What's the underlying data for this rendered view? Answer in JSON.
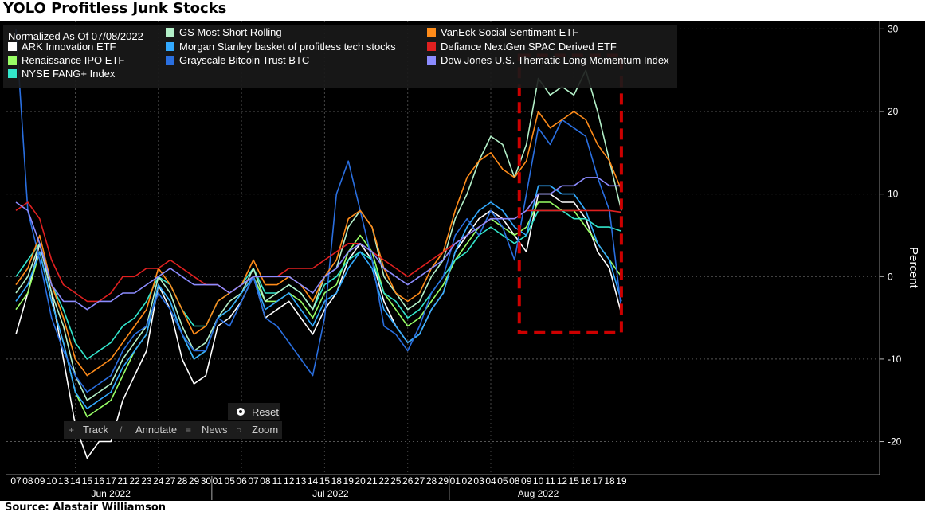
{
  "title": "YOLO Profitless Junk Stocks",
  "source": "Source: Alastair Williamson",
  "toolbar": {
    "reset": "Reset",
    "track": "Track",
    "annotate": "Annotate",
    "news": "News",
    "zoom": "Zoom"
  },
  "chart_data": {
    "type": "line",
    "title": "YOLO Profitless Junk Stocks",
    "normalized_note": "Normalized As Of 07/08/2022",
    "ylabel": "Percent",
    "ylim": [
      -24,
      31
    ],
    "yticks": [
      -20,
      -10,
      0,
      10,
      20,
      30
    ],
    "grid": true,
    "legend_position": "top-left",
    "x_tick_labels": [
      "07",
      "08",
      "09",
      "10",
      "13",
      "14",
      "15",
      "16",
      "17",
      "21",
      "22",
      "23",
      "24",
      "27",
      "28",
      "29",
      "30",
      "01",
      "05",
      "06",
      "07",
      "08",
      "11",
      "12",
      "13",
      "14",
      "15",
      "18",
      "19",
      "20",
      "21",
      "22",
      "25",
      "26",
      "27",
      "28",
      "29",
      "01",
      "02",
      "03",
      "04",
      "05",
      "08",
      "09",
      "10",
      "11",
      "12",
      "15",
      "16",
      "17",
      "18",
      "19"
    ],
    "month_labels": [
      {
        "label": "Jun 2022",
        "start": 0,
        "end": 17
      },
      {
        "label": "Jul 2022",
        "start": 17,
        "end": 37
      },
      {
        "label": "Aug 2022",
        "start": 37,
        "end": 52
      }
    ],
    "highlight_box": {
      "x_start": 42.4,
      "x_end": 51.0,
      "y_min": -6.8,
      "y_max": 26.8,
      "color": "#cc0000"
    },
    "series": [
      {
        "name": "ARK Innovation ETF",
        "color": "#ffffff",
        "values": [
          -7,
          -2,
          4,
          -2,
          -10,
          -18,
          -22,
          -20,
          -20,
          -15,
          -12,
          -9,
          -1,
          -4,
          -10,
          -13,
          -12,
          -6,
          -5,
          -3,
          0,
          -5,
          -4,
          -3,
          -5,
          -7,
          -4,
          -2,
          2,
          4,
          2,
          -3,
          -6,
          -8,
          -7,
          -4,
          -2,
          3,
          5,
          7,
          8,
          7,
          5,
          3,
          10,
          10,
          9,
          9,
          7,
          3,
          1,
          -4.5
        ]
      },
      {
        "name": "Renaissance IPO ETF",
        "color": "#99ff66",
        "values": [
          -4,
          -2,
          3,
          -3,
          -8,
          -14,
          -17,
          -16,
          -15,
          -12,
          -9,
          -7,
          -1,
          -3,
          -7,
          -10,
          -9,
          -5,
          -4,
          -2,
          0,
          -3,
          -3,
          -2,
          -3,
          -5,
          -2,
          -1,
          3,
          5,
          3,
          -2,
          -4,
          -6,
          -5,
          -3,
          -1,
          2,
          4,
          6,
          7,
          6,
          5,
          6,
          9,
          9,
          8,
          8,
          6,
          4,
          2,
          0
        ]
      },
      {
        "name": "NYSE FANG+ Index",
        "color": "#33e6cc",
        "values": [
          0,
          2,
          4,
          -1,
          -4,
          -8,
          -10,
          -9,
          -8,
          -6,
          -5,
          -3,
          0,
          -1,
          -4,
          -6,
          -6,
          -3,
          -2,
          -1,
          1,
          -2,
          -2,
          -1,
          -2,
          -4,
          -1,
          0,
          2,
          3,
          2,
          -2,
          -3,
          -5,
          -4,
          -2,
          0,
          2,
          3,
          5,
          6,
          5,
          4,
          5,
          8,
          8,
          8,
          7,
          7,
          6,
          6,
          5.5
        ]
      },
      {
        "name": "GS Most Short Rolling",
        "color": "#b3f0c8",
        "values": [
          -2,
          0,
          4,
          -2,
          -6,
          -12,
          -15,
          -14,
          -13,
          -10,
          -8,
          -6,
          0,
          -2,
          -6,
          -9,
          -8,
          -5,
          -3,
          -2,
          1,
          -3,
          -2,
          -1,
          -2,
          -4,
          0,
          1,
          6,
          8,
          6,
          0,
          -2,
          -4,
          -3,
          0,
          2,
          7,
          10,
          14,
          17,
          16,
          12,
          16,
          24,
          22,
          23,
          22,
          25,
          20,
          14,
          8
        ]
      },
      {
        "name": "Morgan Stanley basket of profitless tech stocks",
        "color": "#33aaff",
        "values": [
          -3,
          -1,
          3,
          -3,
          -8,
          -14,
          -16,
          -15,
          -14,
          -11,
          -9,
          -7,
          -1,
          -3,
          -7,
          -10,
          -9,
          -5,
          -4,
          -2,
          0,
          -4,
          -3,
          -2,
          -4,
          -6,
          -3,
          -2,
          1,
          3,
          1,
          -4,
          -6,
          -8,
          -7,
          -4,
          -2,
          3,
          6,
          8,
          9,
          8,
          6,
          5,
          11,
          11,
          10,
          10,
          8,
          4,
          2,
          -3
        ]
      },
      {
        "name": "Grayscale Bitcoin Trust BTC",
        "color": "#2a6fe0",
        "values": [
          30,
          8,
          2,
          -5,
          -9,
          -12,
          -14,
          -13,
          -12,
          -9,
          -7,
          -6,
          -2,
          -4,
          -7,
          -9,
          -9,
          -5,
          -6,
          -3,
          0,
          -5,
          -6,
          -8,
          -10,
          -12,
          -5,
          10,
          14,
          8,
          2,
          -6,
          -7,
          -9,
          -6,
          -2,
          0,
          5,
          7,
          5,
          8,
          6,
          2,
          10,
          18,
          16,
          19,
          18,
          17,
          12,
          8,
          -4
        ]
      },
      {
        "name": "VanEck Social Sentiment ETF",
        "color": "#ff8c1a",
        "values": [
          -1,
          1,
          5,
          -1,
          -5,
          -10,
          -12,
          -11,
          -10,
          -8,
          -6,
          -4,
          1,
          -1,
          -4,
          -7,
          -6,
          -3,
          -2,
          -1,
          2,
          -1,
          -1,
          0,
          -1,
          -3,
          0,
          2,
          7,
          8,
          6,
          1,
          -2,
          -3,
          -2,
          1,
          3,
          8,
          12,
          14,
          15,
          13,
          12,
          14,
          20,
          18,
          19,
          20,
          19,
          16,
          14,
          10.5
        ]
      },
      {
        "name": "Defiance NextGen SPAC Derived ETF",
        "color": "#e02020",
        "values": [
          8,
          9,
          7,
          2,
          -1,
          -2,
          -3,
          -3,
          -2,
          0,
          0,
          1,
          1,
          2,
          1,
          0,
          -1,
          -1,
          -2,
          -1,
          0,
          0,
          0,
          1,
          1,
          1,
          2,
          3,
          4,
          4,
          3,
          2,
          1,
          0,
          1,
          2,
          3,
          4,
          5,
          6,
          7,
          7,
          7,
          8,
          8,
          8,
          8,
          8,
          8,
          8,
          8,
          7.8
        ]
      },
      {
        "name": "Dow Jones U.S. Thematic Long Momentum Index",
        "color": "#8c8cff",
        "values": [
          9,
          8,
          4,
          -1,
          -3,
          -3,
          -4,
          -3,
          -3,
          -2,
          -2,
          -1,
          0,
          1,
          0,
          -1,
          -1,
          -1,
          -2,
          -1,
          0,
          0,
          0,
          0,
          -1,
          -2,
          0,
          1,
          3,
          4,
          3,
          1,
          0,
          -1,
          0,
          1,
          2,
          4,
          5,
          6,
          7,
          7,
          7,
          8,
          10,
          10,
          11,
          11,
          12,
          12,
          11,
          11
        ]
      }
    ]
  }
}
